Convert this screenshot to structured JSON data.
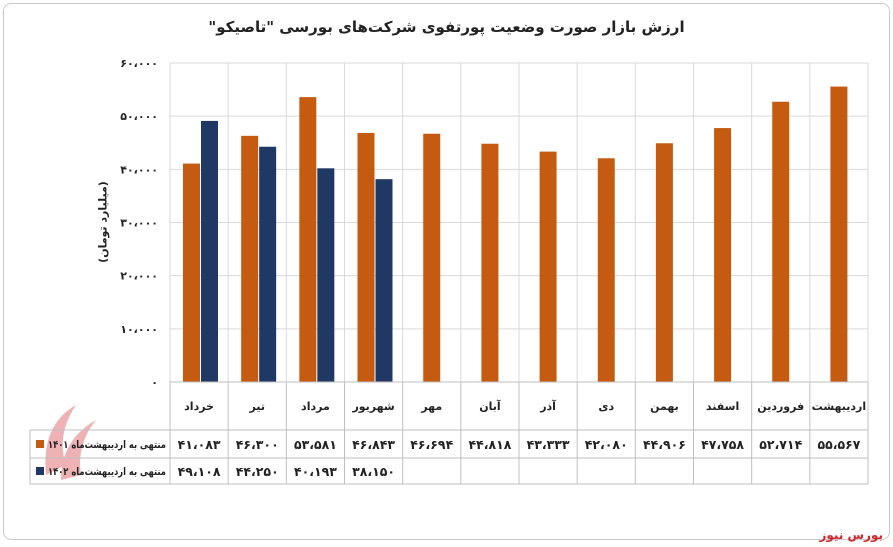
{
  "title": "ارزش بازار صورت وضعیت پورتفوی شرکت‌های بورسی \"تاصیکو\"",
  "footer": "بورس نیوز",
  "colors": {
    "series1": "#c55a11",
    "series2": "#1f3864",
    "grid": "#d9d9d9",
    "text": "#222222",
    "brand": "#d0262b"
  },
  "chart_data": {
    "type": "bar",
    "title": "ارزش بازار صورت وضعیت پورتفوی شرکت‌های بورسی \"تاصیکو\"",
    "ylabel": "(میلیارد تومان)",
    "xlabel": "",
    "ylim": [
      0,
      60000
    ],
    "yticks": [
      0,
      10000,
      20000,
      30000,
      40000,
      50000,
      60000
    ],
    "ytick_labels": [
      "۰",
      "۱۰،۰۰۰",
      "۲۰،۰۰۰",
      "۳۰،۰۰۰",
      "۴۰،۰۰۰",
      "۵۰،۰۰۰",
      "۶۰،۰۰۰"
    ],
    "grid": true,
    "legend": "bottom-table",
    "categories": [
      "خرداد",
      "تیر",
      "مرداد",
      "شهریور",
      "مهر",
      "آبان",
      "آذر",
      "دی",
      "بهمن",
      "اسفند",
      "فروردین",
      "اردیبهشت"
    ],
    "series": [
      {
        "name": "منتهی به اردیبهشت‌ماه ۱۴۰۱",
        "color": "#c55a11",
        "values": [
          41083,
          46300,
          53581,
          46843,
          46694,
          44818,
          43333,
          42080,
          44906,
          47758,
          52714,
          55567
        ],
        "labels": [
          "۴۱،۰۸۳",
          "۴۶،۳۰۰",
          "۵۳،۵۸۱",
          "۴۶،۸۴۳",
          "۴۶،۶۹۴",
          "۴۴،۸۱۸",
          "۴۳،۳۳۳",
          "۴۲،۰۸۰",
          "۴۴،۹۰۶",
          "۴۷،۷۵۸",
          "۵۲،۷۱۴",
          "۵۵،۵۶۷"
        ]
      },
      {
        "name": "منتهی به اردیبهشت‌ماه ۱۴۰۲",
        "color": "#1f3864",
        "values": [
          49108,
          44250,
          40193,
          38150,
          null,
          null,
          null,
          null,
          null,
          null,
          null,
          null
        ],
        "labels": [
          "۴۹،۱۰۸",
          "۴۴،۲۵۰",
          "۴۰،۱۹۳",
          "۳۸،۱۵۰",
          "",
          "",
          "",
          "",
          "",
          "",
          "",
          ""
        ]
      }
    ]
  }
}
